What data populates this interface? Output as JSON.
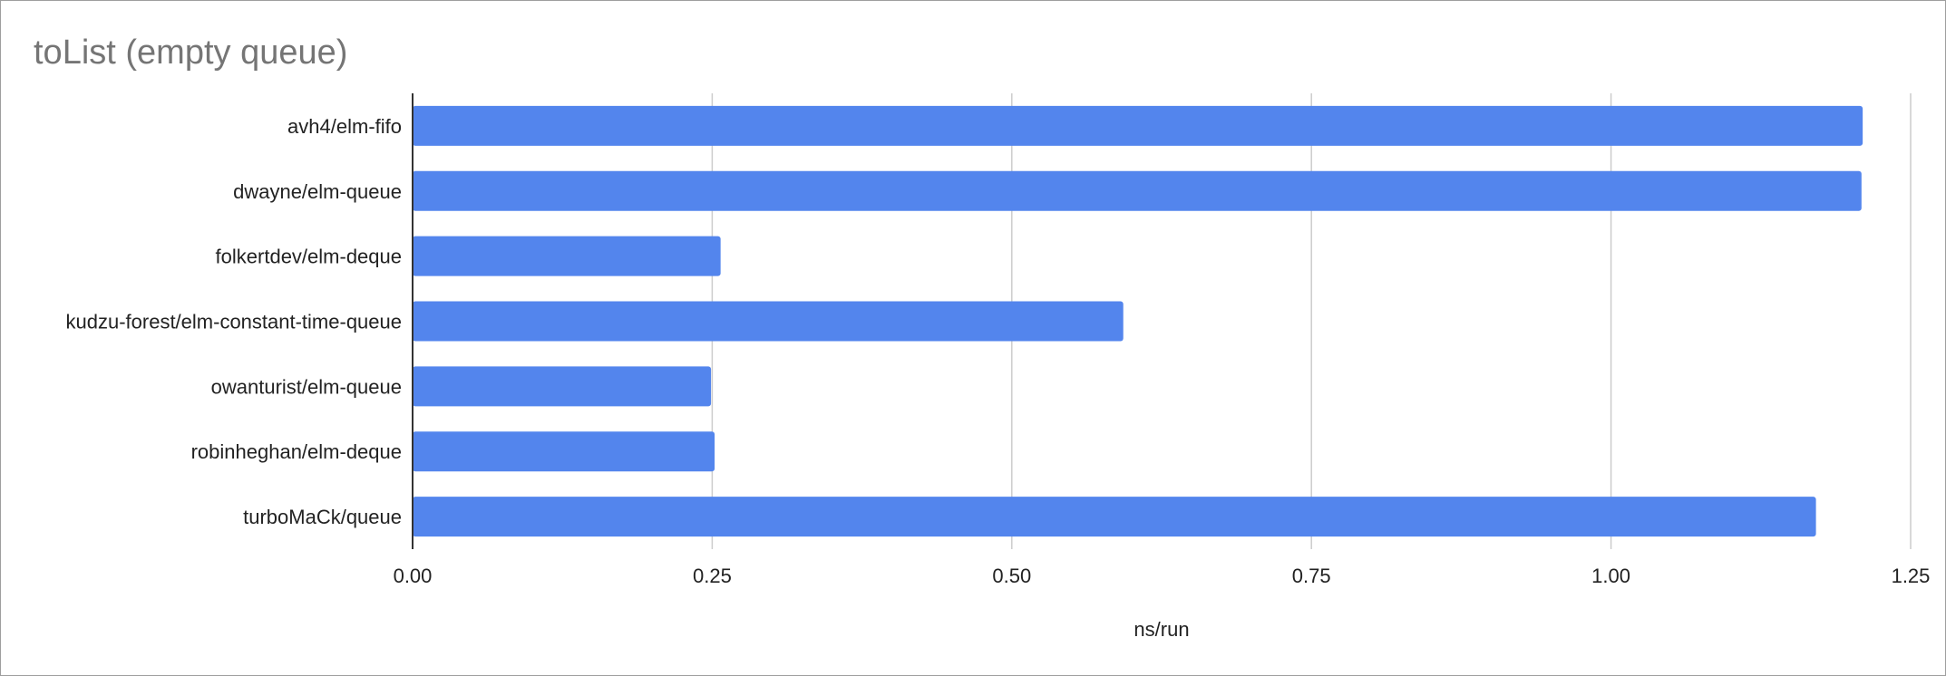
{
  "chart_data": {
    "type": "bar",
    "orientation": "horizontal",
    "title": "toList (empty queue)",
    "xlabel": "ns/run",
    "ylabel": "",
    "categories": [
      "avh4/elm-fifo",
      "dwayne/elm-queue",
      "folkertdev/elm-deque",
      "kudzu-forest/elm-constant-time-queue",
      "owanturist/elm-queue",
      "robinheghan/elm-deque",
      "turboMaCk/queue"
    ],
    "values": [
      1.21,
      1.209,
      0.257,
      0.593,
      0.249,
      0.252,
      1.171
    ],
    "xlim": [
      0,
      1.25
    ],
    "xticks": [
      "0.00",
      "0.25",
      "0.50",
      "0.75",
      "1.00",
      "1.25"
    ],
    "grid": true,
    "legend": "none",
    "bar_color": "#5385ed",
    "grid_color": "#cccccc",
    "axis_color": "#333333"
  }
}
